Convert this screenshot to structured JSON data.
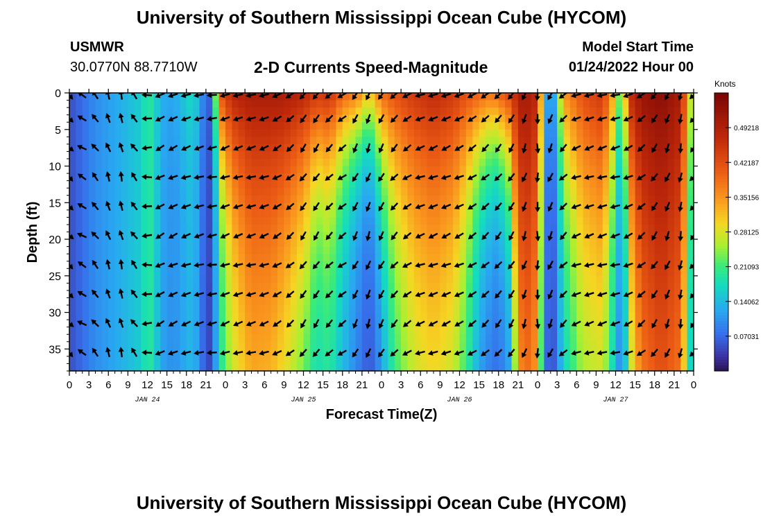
{
  "header": {
    "title": "University of Southern Mississippi Ocean Cube (HYCOM)",
    "station": "USMWR",
    "location": "30.0770N  88.7710W",
    "subtitle": "2-D Currents Speed-Magnitude",
    "model_start_label": "Model Start Time",
    "model_start_value": "01/24/2022 Hour 00",
    "footer_title": "University of Southern Mississippi Ocean Cube (HYCOM)"
  },
  "chart_data": {
    "type": "heatmap",
    "title": "2-D Currents Speed-Magnitude",
    "xlabel": "Forecast Time(Z)",
    "ylabel": "Depth (ft)",
    "x_range_hours": [
      0,
      96
    ],
    "y_range_ft": [
      0,
      38
    ],
    "x_tick_labels": [
      "0",
      "3",
      "6",
      "9",
      "12",
      "15",
      "18",
      "21",
      "0",
      "3",
      "6",
      "9",
      "12",
      "15",
      "18",
      "21",
      "0",
      "3",
      "6",
      "9",
      "12",
      "15",
      "18",
      "21",
      "0",
      "3",
      "6",
      "9",
      "12",
      "15",
      "18",
      "21",
      "0"
    ],
    "y_ticks": [
      0,
      5,
      10,
      15,
      20,
      25,
      30,
      35
    ],
    "day_labels": [
      {
        "label": "JAN 24",
        "hour": 12
      },
      {
        "label": "JAN 25",
        "hour": 36
      },
      {
        "label": "JAN 26",
        "hour": 60
      },
      {
        "label": "JAN 27",
        "hour": 84
      }
    ],
    "colorbar": {
      "unit": "Knots",
      "tick_labels": [
        "0.49218",
        "0.42187",
        "0.35156",
        "0.28125",
        "0.21093",
        "0.14062",
        "0.07031"
      ],
      "ticks": [
        0.49218,
        0.42187,
        0.35156,
        0.28125,
        0.21093,
        0.14062,
        0.07031
      ],
      "range": [
        0,
        0.5625
      ]
    },
    "speed_profile": {
      "hours": [
        0,
        1,
        4,
        8,
        11,
        12,
        13,
        14,
        16,
        19,
        20,
        21,
        22,
        23,
        25,
        28,
        31,
        33,
        36,
        38,
        40,
        42,
        44,
        45,
        46,
        47,
        48,
        50,
        53,
        56,
        59,
        61,
        63,
        65,
        66,
        68,
        69,
        70,
        72,
        73,
        74,
        76,
        79,
        82,
        84,
        85,
        86,
        88,
        91,
        94,
        96
      ],
      "surface": [
        0.05,
        0.06,
        0.1,
        0.13,
        0.16,
        0.2,
        0.18,
        0.13,
        0.12,
        0.18,
        0.13,
        0.06,
        0.07,
        0.4,
        0.48,
        0.5,
        0.5,
        0.5,
        0.48,
        0.45,
        0.46,
        0.4,
        0.38,
        0.35,
        0.3,
        0.34,
        0.39,
        0.42,
        0.45,
        0.47,
        0.45,
        0.42,
        0.4,
        0.38,
        0.4,
        0.44,
        0.49,
        0.51,
        0.47,
        0.2,
        0.05,
        0.35,
        0.42,
        0.45,
        0.3,
        0.18,
        0.46,
        0.52,
        0.54,
        0.5,
        0.2
      ],
      "bottom": [
        0.05,
        0.06,
        0.1,
        0.13,
        0.16,
        0.2,
        0.18,
        0.12,
        0.1,
        0.14,
        0.1,
        0.04,
        0.05,
        0.17,
        0.24,
        0.28,
        0.26,
        0.22,
        0.18,
        0.16,
        0.17,
        0.13,
        0.09,
        0.07,
        0.05,
        0.06,
        0.1,
        0.17,
        0.22,
        0.24,
        0.22,
        0.17,
        0.1,
        0.07,
        0.06,
        0.1,
        0.21,
        0.3,
        0.26,
        0.1,
        0.03,
        0.14,
        0.2,
        0.21,
        0.12,
        0.07,
        0.19,
        0.26,
        0.31,
        0.28,
        0.1
      ],
      "decay_depth_ft": [
        10,
        10,
        10,
        10,
        10,
        10,
        10,
        10,
        10,
        10,
        10,
        10,
        10,
        12,
        18,
        28,
        30,
        28,
        22,
        14,
        16,
        12,
        10,
        10,
        10,
        12,
        14,
        20,
        26,
        28,
        26,
        20,
        14,
        12,
        12,
        16,
        46,
        50,
        40,
        12,
        10,
        18,
        28,
        30,
        20,
        12,
        22,
        48,
        52,
        48,
        14
      ]
    },
    "arrow_grid": {
      "depths_ft": [
        0.3,
        3.5,
        7.5,
        11.5,
        15.5,
        19.5,
        23.5,
        27.5,
        31.5,
        35.5
      ],
      "direction_deg_by_hour": {
        "hours": [
          0,
          2,
          6,
          9,
          13,
          18,
          22,
          24,
          29,
          34,
          37,
          42,
          45,
          48,
          54,
          60,
          66,
          69,
          72,
          78,
          84,
          87,
          90,
          94,
          96
        ],
        "angle": [
          315,
          150,
          110,
          100,
          210,
          200,
          190,
          200,
          195,
          220,
          240,
          215,
          255,
          240,
          200,
          205,
          230,
          240,
          270,
          200,
          195,
          210,
          235,
          260,
          230
        ]
      }
    }
  }
}
